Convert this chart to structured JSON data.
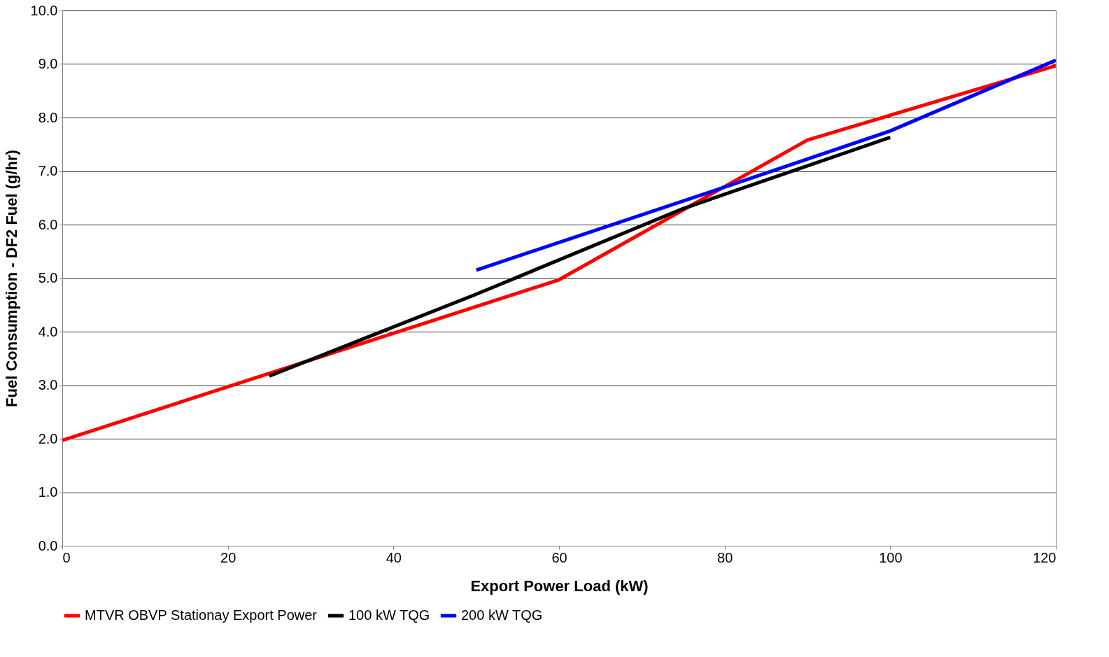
{
  "chart_data": {
    "type": "line",
    "xlabel": "Export Power Load (kW)",
    "ylabel": "Fuel Consumption - DF2 Fuel (g/hr)",
    "xlim": [
      0,
      120
    ],
    "xticks": [
      0,
      20,
      40,
      60,
      80,
      100,
      120
    ],
    "ylim": [
      0,
      10
    ],
    "yticks": [
      {
        "value": 0,
        "label": "0.0"
      },
      {
        "value": 1,
        "label": "1.0"
      },
      {
        "value": 2,
        "label": "2.0"
      },
      {
        "value": 3,
        "label": "3.0"
      },
      {
        "value": 4,
        "label": "4.0"
      },
      {
        "value": 5,
        "label": "5.0"
      },
      {
        "value": 6,
        "label": "6.0"
      },
      {
        "value": 7,
        "label": "7.0"
      },
      {
        "value": 8,
        "label": "8.0"
      },
      {
        "value": 9,
        "label": "9.0"
      },
      {
        "value": 10,
        "label": "10.0"
      }
    ],
    "grid": "y",
    "legend": "bottom",
    "marker": "none",
    "line_style": "solid",
    "series": [
      {
        "name": "MTVR OBVP Stationay Export Power",
        "color": "#ff0000",
        "x": [
          0,
          60,
          90,
          120
        ],
        "values": [
          1.97,
          4.97,
          7.58,
          8.97
        ]
      },
      {
        "name": "100 kW TQG",
        "color": "#000000",
        "x": [
          25,
          50,
          75,
          100
        ],
        "values": [
          3.17,
          4.7,
          6.3,
          7.63
        ]
      },
      {
        "name": "200 kW TQG",
        "color": "#0000ff",
        "x": [
          50,
          80,
          100,
          120
        ],
        "values": [
          5.15,
          6.7,
          7.75,
          9.07
        ]
      }
    ]
  }
}
